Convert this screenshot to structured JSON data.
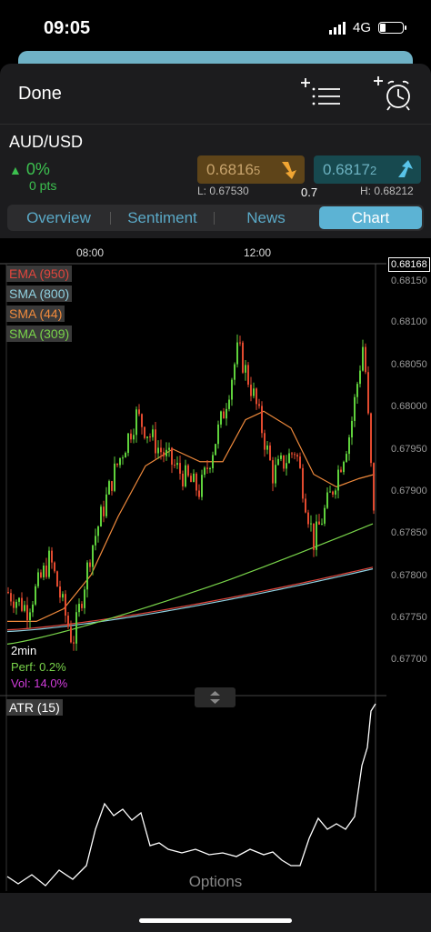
{
  "status": {
    "time": "09:05",
    "network": "4G"
  },
  "header": {
    "done_label": "Done"
  },
  "instrument": {
    "symbol": "AUD/USD",
    "change_pct": "0%",
    "change_pts": "0 pts"
  },
  "quote": {
    "sell_main": "0.6816",
    "sell_pip": "5",
    "buy_main": "0.6817",
    "buy_pip": "2",
    "low": "L: 0.67530",
    "spread": "0.7",
    "high": "H: 0.68212"
  },
  "tabs": [
    "Overview",
    "Sentiment",
    "News",
    "Chart"
  ],
  "chart": {
    "x_ticks": [
      "08:00",
      "12:00"
    ],
    "current_price": "0.68168",
    "y_ticks": [
      "0.68150",
      "0.68100",
      "0.68050",
      "0.68000",
      "0.67950",
      "0.67900",
      "0.67850",
      "0.67800",
      "0.67750",
      "0.67700"
    ],
    "indicators": [
      "EMA (950)",
      "SMA (800)",
      "SMA (44)",
      "SMA (309)"
    ],
    "indicator_colors": [
      "#e0463d",
      "#8fd0e0",
      "#f08a3c",
      "#79d44a"
    ],
    "timeframe": "2min",
    "perf": "Perf: 0.2%",
    "vol": "Vol: 14.0%",
    "atr_label": "ATR (15)"
  },
  "footer": {
    "options_label": "Options"
  }
}
